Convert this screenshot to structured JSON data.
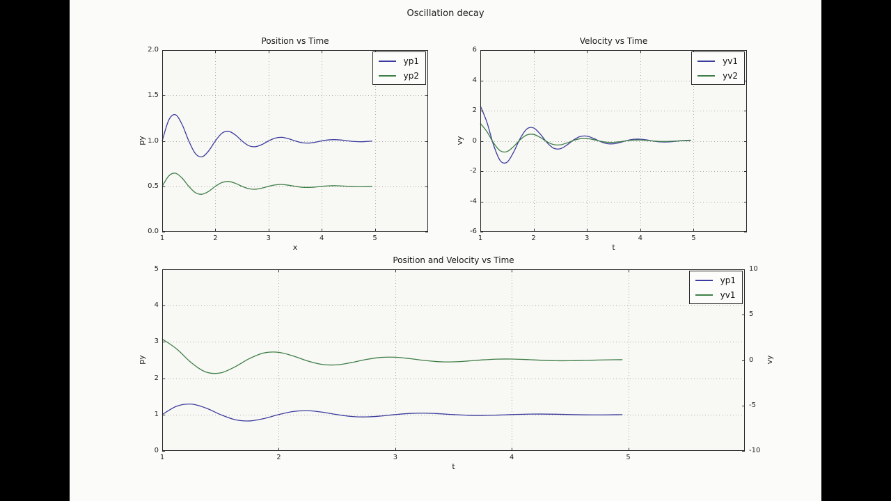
{
  "figure": {
    "suptitle": "Oscillation decay",
    "background_color": "#000000",
    "canvas_color": "#fbfbf9",
    "axes_color": "#f8f8f4",
    "grid_color": "#a8a8a8",
    "spine_color": "#2b2b2b",
    "blue": "#3b3b9e",
    "green": "#3e7e47"
  },
  "chart_data": [
    {
      "id": "position",
      "type": "line",
      "title": "Position vs Time",
      "xlabel": "x",
      "ylabel": "py",
      "xlim": [
        1,
        6
      ],
      "ylim": [
        0,
        2
      ],
      "grid": true,
      "legend_position": "upper right",
      "xtick_values": [
        1,
        2,
        3,
        4,
        5
      ],
      "xtick_labels": [
        "1",
        "2",
        "3",
        "4",
        "5"
      ],
      "ytick_values": [
        0,
        0.5,
        1,
        1.5,
        2
      ],
      "ytick_labels": [
        "0.0",
        "0.5",
        "1.0",
        "1.5",
        "2.0"
      ],
      "x": [
        1,
        1.125,
        1.25,
        1.375,
        1.5,
        1.625,
        1.75,
        1.875,
        2,
        2.125,
        2.25,
        2.375,
        2.5,
        2.625,
        2.75,
        2.875,
        3,
        3.125,
        3.25,
        3.375,
        3.5,
        3.625,
        3.75,
        3.875,
        4,
        4.125,
        4.25,
        4.375,
        4.5,
        4.625,
        4.75,
        4.875,
        4.95
      ],
      "series": [
        {
          "name": "yp1",
          "color": "#3b3b9e",
          "axis": "left",
          "values": [
            1,
            1.231,
            1.288,
            1.18,
            1,
            0.86,
            0.825,
            0.891,
            1,
            1.085,
            1.106,
            1.066,
            1,
            0.948,
            0.936,
            0.96,
            1,
            1.031,
            1.039,
            1.024,
            1,
            0.981,
            0.976,
            0.985,
            1,
            1.011,
            1.014,
            1.009,
            1,
            0.993,
            0.991,
            0.995,
            0.998
          ]
        },
        {
          "name": "yp2",
          "color": "#3e7e47",
          "axis": "left",
          "values": [
            0.5,
            0.615,
            0.644,
            0.59,
            0.5,
            0.43,
            0.413,
            0.445,
            0.5,
            0.542,
            0.553,
            0.533,
            0.5,
            0.474,
            0.468,
            0.48,
            0.5,
            0.515,
            0.52,
            0.512,
            0.5,
            0.49,
            0.488,
            0.492,
            0.5,
            0.505,
            0.507,
            0.504,
            0.5,
            0.497,
            0.495,
            0.497,
            0.499
          ]
        }
      ]
    },
    {
      "id": "velocity",
      "type": "line",
      "title": "Velocity vs Time",
      "xlabel": "t",
      "ylabel": "vy",
      "xlim": [
        1,
        6
      ],
      "ylim": [
        -6,
        6
      ],
      "grid": true,
      "legend_position": "upper right",
      "xtick_values": [
        1,
        2,
        3,
        4,
        5
      ],
      "xtick_labels": [
        "1",
        "2",
        "3",
        "4",
        "5"
      ],
      "ytick_values": [
        -6,
        -4,
        -2,
        0,
        2,
        4,
        6
      ],
      "ytick_labels": [
        "-6",
        "-4",
        "-2",
        "0",
        "2",
        "4",
        "6"
      ],
      "x": [
        1,
        1.125,
        1.25,
        1.375,
        1.5,
        1.625,
        1.75,
        1.875,
        2,
        2.125,
        2.25,
        2.375,
        2.5,
        2.625,
        2.75,
        2.875,
        3,
        3.125,
        3.25,
        3.375,
        3.5,
        3.625,
        3.75,
        3.875,
        4,
        4.125,
        4.25,
        4.375,
        4.5,
        4.625,
        4.75,
        4.875,
        4.95
      ],
      "series": [
        {
          "name": "yv1",
          "color": "#3b3b9e",
          "axis": "left",
          "values": [
            2.325,
            1.22,
            -0.288,
            -1.31,
            -1.41,
            -0.74,
            0.175,
            0.794,
            0.855,
            0.449,
            -0.106,
            -0.482,
            -0.519,
            -0.272,
            0.064,
            0.292,
            0.315,
            0.165,
            -0.039,
            -0.177,
            -0.191,
            -0.1,
            0.024,
            0.108,
            0.116,
            0.061,
            -0.014,
            -0.065,
            -0.07,
            -0.037,
            0.009,
            0.04,
            0.045
          ]
        },
        {
          "name": "yv2",
          "color": "#3e7e47",
          "axis": "left",
          "values": [
            1.163,
            0.61,
            -0.144,
            -0.655,
            -0.705,
            -0.37,
            0.088,
            0.397,
            0.428,
            0.225,
            -0.053,
            -0.241,
            -0.26,
            -0.136,
            0.032,
            0.146,
            0.158,
            0.083,
            -0.02,
            -0.089,
            -0.096,
            -0.05,
            0.012,
            0.054,
            0.058,
            0.031,
            -0.007,
            -0.033,
            -0.035,
            -0.019,
            0.005,
            0.02,
            0.023
          ]
        }
      ]
    },
    {
      "id": "combined",
      "type": "line",
      "title": "Position and Velocity vs Time",
      "xlabel": "t",
      "ylabel": "py",
      "ylabel_right": "vy",
      "xlim": [
        1,
        6
      ],
      "ylim": [
        0,
        5
      ],
      "ylim_right": [
        -10,
        10
      ],
      "grid": true,
      "legend_position": "upper right",
      "xtick_values": [
        1,
        2,
        3,
        4,
        5
      ],
      "xtick_labels": [
        "1",
        "2",
        "3",
        "4",
        "5"
      ],
      "ytick_values": [
        0,
        1,
        2,
        3,
        4,
        5
      ],
      "ytick_labels": [
        "0",
        "1",
        "2",
        "3",
        "4",
        "5"
      ],
      "ytick_right_values": [
        -10,
        -5,
        0,
        5,
        10
      ],
      "ytick_right_labels": [
        "-10",
        "-5",
        "0",
        "5",
        "10"
      ],
      "x": [
        1,
        1.125,
        1.25,
        1.375,
        1.5,
        1.625,
        1.75,
        1.875,
        2,
        2.125,
        2.25,
        2.375,
        2.5,
        2.625,
        2.75,
        2.875,
        3,
        3.125,
        3.25,
        3.375,
        3.5,
        3.625,
        3.75,
        3.875,
        4,
        4.125,
        4.25,
        4.375,
        4.5,
        4.625,
        4.75,
        4.875,
        4.95
      ],
      "series": [
        {
          "name": "yp1",
          "color": "#3b3b9e",
          "axis": "left",
          "values": [
            1,
            1.231,
            1.288,
            1.18,
            1,
            0.86,
            0.825,
            0.891,
            1,
            1.085,
            1.106,
            1.066,
            1,
            0.948,
            0.936,
            0.96,
            1,
            1.031,
            1.039,
            1.024,
            1,
            0.981,
            0.976,
            0.985,
            1,
            1.011,
            1.014,
            1.009,
            1,
            0.993,
            0.991,
            0.995,
            0.998
          ]
        },
        {
          "name": "yv1",
          "color": "#3e7e47",
          "axis": "right",
          "values": [
            2.325,
            1.22,
            -0.288,
            -1.31,
            -1.41,
            -0.74,
            0.175,
            0.794,
            0.855,
            0.449,
            -0.106,
            -0.482,
            -0.519,
            -0.272,
            0.064,
            0.292,
            0.315,
            0.165,
            -0.039,
            -0.177,
            -0.191,
            -0.1,
            0.024,
            0.108,
            0.116,
            0.061,
            -0.014,
            -0.065,
            -0.07,
            -0.037,
            0.009,
            0.04,
            0.045
          ]
        }
      ]
    }
  ]
}
